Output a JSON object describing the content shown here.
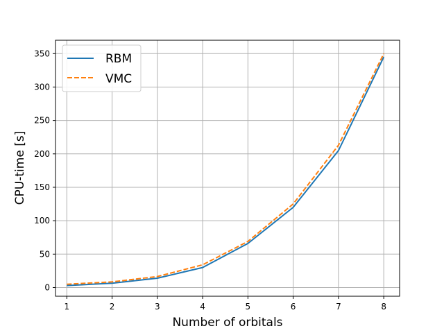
{
  "chart_data": {
    "type": "line",
    "xlabel": "Number of orbitals",
    "ylabel": "CPU-time [s]",
    "x": [
      1,
      2,
      3,
      4,
      5,
      6,
      7,
      8
    ],
    "xlim": [
      0.75,
      8.35
    ],
    "ylim": [
      -13,
      370
    ],
    "xticks": [
      1,
      2,
      3,
      4,
      5,
      6,
      7,
      8
    ],
    "yticks": [
      0,
      50,
      100,
      150,
      200,
      250,
      300,
      350
    ],
    "grid": true,
    "legend_position": "upper-left",
    "series": [
      {
        "name": "RBM",
        "color": "#1f77b4",
        "style": "solid",
        "values": [
          3,
          6.5,
          14,
          30,
          66,
          120,
          205,
          345
        ]
      },
      {
        "name": "VMC",
        "color": "#ff7f0e",
        "style": "dashed",
        "values": [
          5,
          8.5,
          16.5,
          34,
          69,
          125,
          213,
          350
        ]
      }
    ]
  }
}
